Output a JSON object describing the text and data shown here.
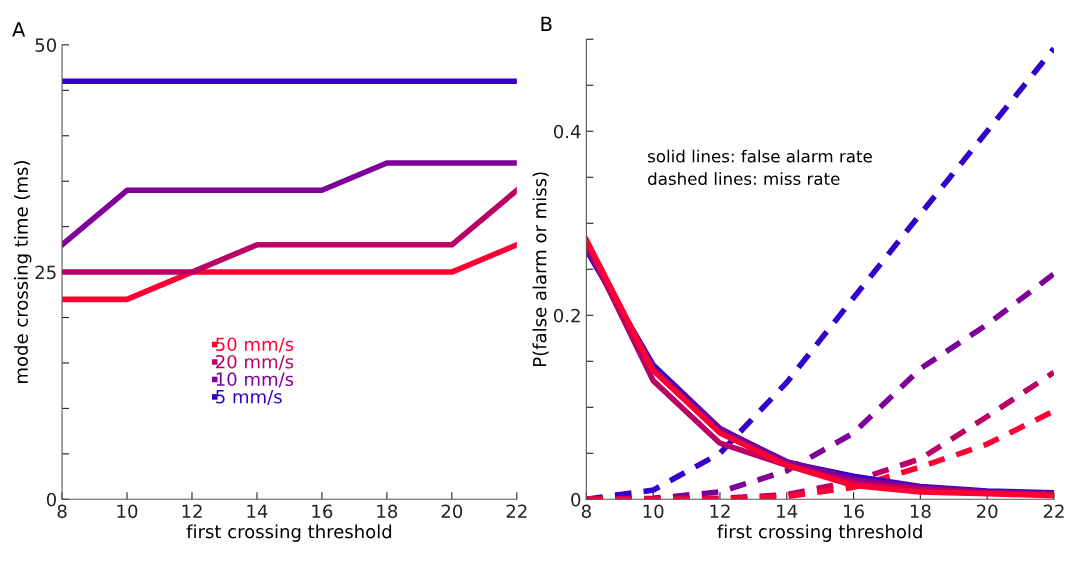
{
  "chart_data": [
    {
      "type": "line",
      "title": "A",
      "xlabel": "first crossing threshold",
      "ylabel": "mode crossing time (ms)",
      "x": [
        8,
        10,
        12,
        14,
        16,
        18,
        20,
        22
      ],
      "xlim": [
        8,
        22
      ],
      "xticks": [
        8,
        10,
        12,
        14,
        16,
        18,
        20,
        22
      ],
      "ylim": [
        0,
        50
      ],
      "yticks": [
        0,
        {
          "value": 5,
          "label": null
        },
        {
          "value": 10,
          "label": null
        },
        {
          "value": 15,
          "label": null
        },
        {
          "value": 20,
          "label": null
        },
        25,
        {
          "value": 30,
          "label": null
        },
        {
          "value": 35,
          "label": null
        },
        {
          "value": 40,
          "label": null
        },
        {
          "value": 45,
          "label": null
        },
        50
      ],
      "legend": "center left",
      "grid": false,
      "line_style": "solid",
      "series": [
        {
          "name": "50 mm/s",
          "color": "#ff0033",
          "values": [
            22,
            22,
            25,
            25,
            25,
            25,
            25,
            28
          ]
        },
        {
          "name": "20 mm/s",
          "color": "#bb0066",
          "values": [
            25,
            25,
            25,
            28,
            28,
            28,
            28,
            34
          ]
        },
        {
          "name": "10 mm/s",
          "color": "#7d0099",
          "values": [
            28,
            34,
            34,
            34,
            34,
            37,
            37,
            37
          ]
        },
        {
          "name": "5 mm/s",
          "color": "#3300cc",
          "values": [
            46,
            46,
            46,
            46,
            46,
            46,
            46,
            46
          ]
        }
      ]
    },
    {
      "type": "line",
      "title": "B",
      "xlabel": "first crossing threshold",
      "ylabel": "P(false alarm or miss)",
      "x": [
        8,
        10,
        12,
        14,
        16,
        18,
        20,
        22
      ],
      "xlim": [
        8,
        22
      ],
      "xticks": [
        8,
        10,
        12,
        14,
        16,
        18,
        20,
        22
      ],
      "ylim": [
        0,
        0.5
      ],
      "yticks": [
        0,
        {
          "value": 0.05,
          "label": null
        },
        {
          "value": 0.1,
          "label": null
        },
        {
          "value": 0.15,
          "label": null
        },
        0.2,
        {
          "value": 0.25,
          "label": null
        },
        {
          "value": 0.3,
          "label": null
        },
        {
          "value": 0.35,
          "label": null
        },
        0.4,
        {
          "value": 0.45,
          "label": null
        },
        {
          "value": 0.5,
          "label": null
        }
      ],
      "grid": false,
      "annotations": [
        "solid lines: false alarm rate\ndashed lines: miss rate"
      ],
      "series": [
        {
          "color": "#3300cc",
          "line_style": "dashed",
          "values": [
            0,
            0.01,
            0.05,
            0.127,
            0.219,
            0.31,
            0.4,
            0.49
          ]
        },
        {
          "color": "#7d0099",
          "line_style": "dashed",
          "values": [
            0,
            0.001,
            0.008,
            0.031,
            0.072,
            0.142,
            0.19,
            0.245
          ]
        },
        {
          "color": "#bb0066",
          "line_style": "dashed",
          "values": [
            0,
            0,
            0.001,
            0.005,
            0.02,
            0.044,
            0.09,
            0.138
          ]
        },
        {
          "color": "#ff0033",
          "line_style": "dashed",
          "values": [
            0,
            0,
            0,
            0.003,
            0.013,
            0.035,
            0.06,
            0.096
          ]
        },
        {
          "color": "#3300cc",
          "line_style": "solid",
          "values": [
            0.271,
            0.146,
            0.077,
            0.04,
            0.025,
            0.014,
            0.009,
            0.007
          ]
        },
        {
          "color": "#7d0099",
          "line_style": "solid",
          "values": [
            0.275,
            0.142,
            0.076,
            0.041,
            0.022,
            0.013,
            0.008,
            0.006
          ]
        },
        {
          "color": "#bb0066",
          "line_style": "solid",
          "values": [
            0.278,
            0.129,
            0.061,
            0.037,
            0.018,
            0.011,
            0.007,
            0.005
          ]
        },
        {
          "color": "#ff0033",
          "line_style": "solid",
          "values": [
            0.282,
            0.14,
            0.072,
            0.037,
            0.015,
            0.008,
            0.006,
            0.004
          ]
        }
      ]
    }
  ]
}
